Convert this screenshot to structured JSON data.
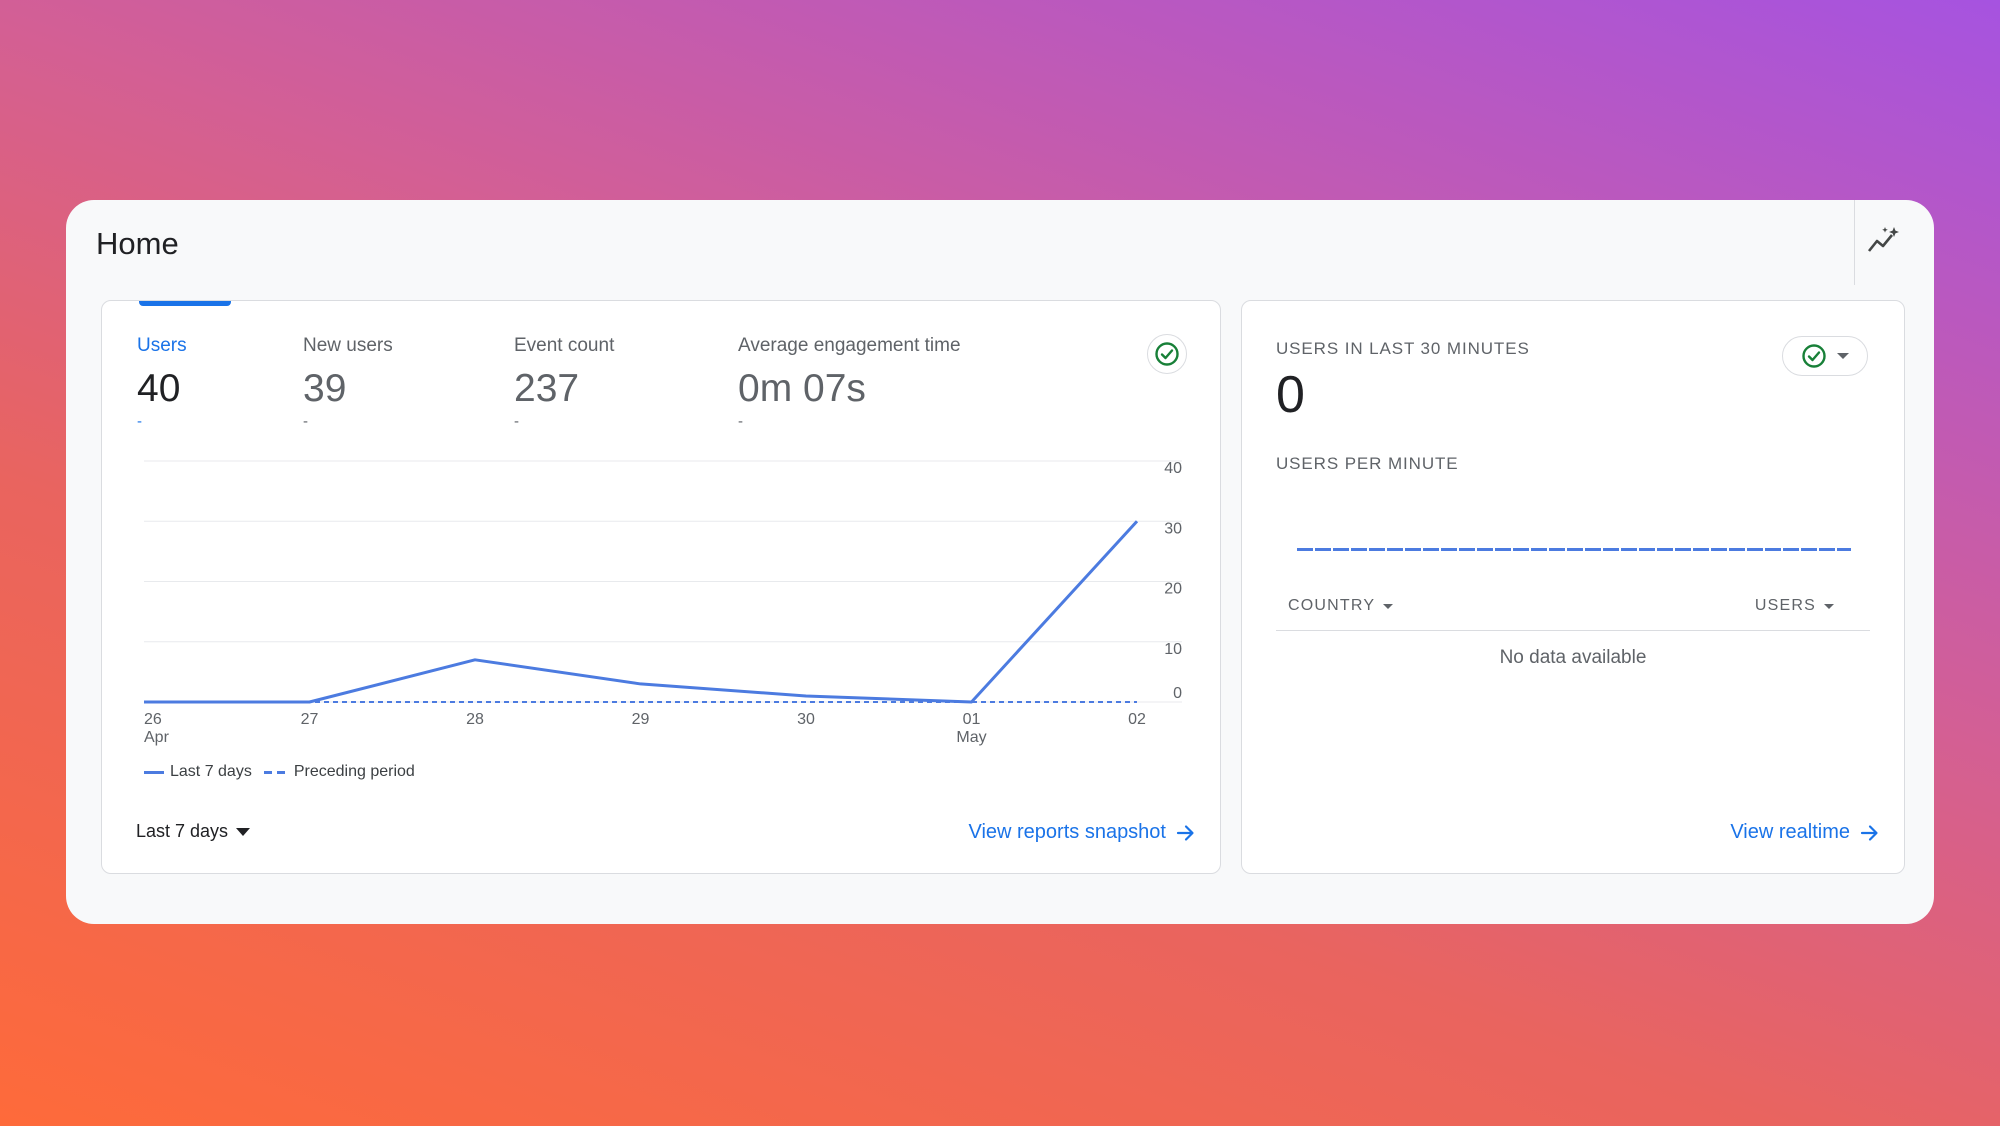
{
  "header": {
    "title": "Home",
    "insights_icon": "auto-insights-icon"
  },
  "overview": {
    "metrics": [
      {
        "label": "Users",
        "value": "40",
        "change": "-",
        "active": true
      },
      {
        "label": "New users",
        "value": "39",
        "change": "-"
      },
      {
        "label": "Event count",
        "value": "237",
        "change": "-"
      },
      {
        "label": "Average engagement time",
        "value": "0m 07s",
        "change": "-"
      }
    ],
    "status_icon": "check-circle-icon",
    "date_range": "Last 7 days",
    "view_link": "View reports snapshot"
  },
  "chart_data": {
    "type": "line",
    "x": [
      "26\nApr",
      "27",
      "28",
      "29",
      "30",
      "01\nMay",
      "02"
    ],
    "series": [
      {
        "name": "Last 7 days",
        "values": [
          0,
          0,
          7,
          3,
          1,
          0,
          30
        ],
        "style": "solid"
      },
      {
        "name": "Preceding period",
        "values": [
          0,
          0,
          0,
          0,
          0,
          0,
          0
        ],
        "style": "dashed"
      }
    ],
    "yticks": [
      0,
      10,
      20,
      30,
      40
    ],
    "ylim": [
      0,
      40
    ],
    "grid": true,
    "legend_position": "bottom-left",
    "color": "#4c7be0"
  },
  "realtime": {
    "title": "USERS IN LAST 30 MINUTES",
    "value": "0",
    "subtitle": "USERS PER MINUTE",
    "columns": [
      "COUNTRY",
      "USERS"
    ],
    "empty_text": "No data available",
    "view_link": "View realtime"
  },
  "colors": {
    "accent": "#1a73e8",
    "success": "#188038",
    "line": "#4c7be0"
  }
}
